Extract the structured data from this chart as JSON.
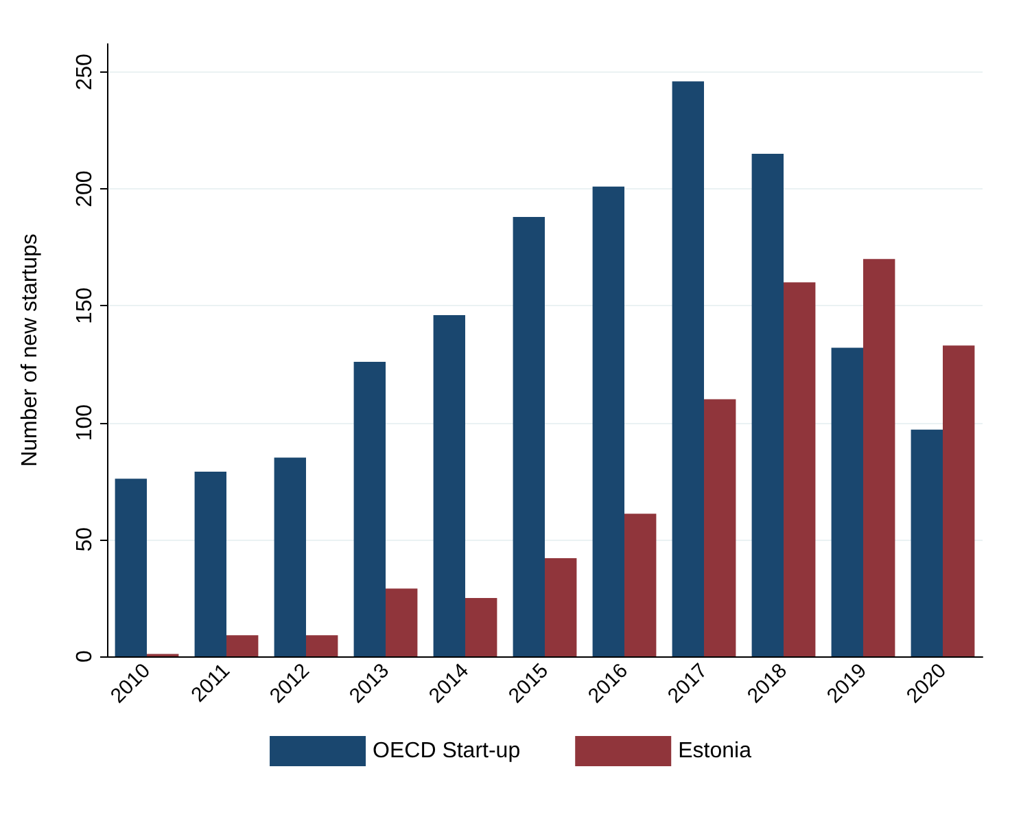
{
  "chart_data": {
    "type": "bar",
    "ylabel": "Number of new startups",
    "categories": [
      "2010",
      "2011",
      "2012",
      "2013",
      "2014",
      "2015",
      "2016",
      "2017",
      "2018",
      "2019",
      "2020"
    ],
    "series": [
      {
        "name": "OECD Start-up",
        "color": "#1a476f",
        "values": [
          76,
          79,
          85,
          126,
          146,
          188,
          201,
          246,
          215,
          132,
          97
        ]
      },
      {
        "name": "Estonia",
        "color": "#90353b",
        "values": [
          1,
          9,
          9,
          29,
          25,
          42,
          61,
          110,
          160,
          170,
          133
        ]
      }
    ],
    "ylim": [
      0,
      262
    ],
    "yticks": [
      0,
      50,
      100,
      150,
      200,
      250
    ],
    "grid": "y",
    "legend": "bottom"
  }
}
